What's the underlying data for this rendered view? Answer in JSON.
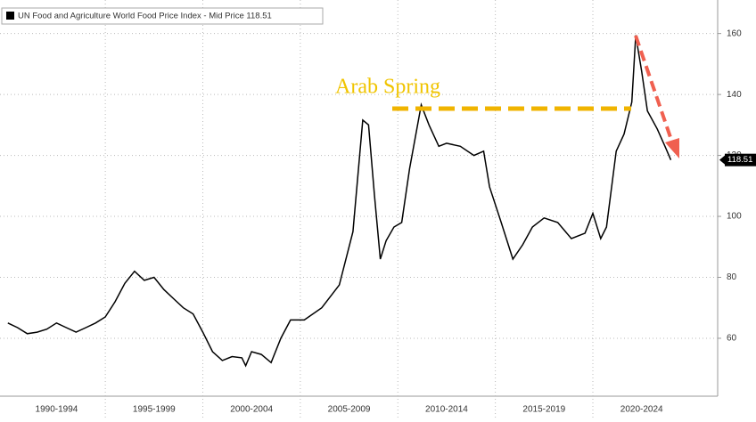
{
  "chart_data": {
    "type": "line",
    "legend": "top-left",
    "annotations": [
      "Arab Spring"
    ],
    "series": [
      {
        "name": "UN Food and Agriculture World Food Price Index - Mid Price 118.51",
        "color": "#000000",
        "x": [
          1990.0,
          1990.5,
          1991.0,
          1991.5,
          1992.0,
          1992.5,
          1993.0,
          1993.5,
          1994.0,
          1994.5,
          1995.0,
          1995.5,
          1996.0,
          1996.5,
          1997.0,
          1997.5,
          1998.0,
          1998.5,
          1999.0,
          1999.5,
          2000.0,
          2000.5,
          2001.0,
          2001.5,
          2002.0,
          2002.2,
          2002.5,
          2003.0,
          2003.5,
          2004.0,
          2004.5,
          2005.2,
          2006.1,
          2007.0,
          2007.7,
          2008.2,
          2008.5,
          2008.8,
          2009.1,
          2009.4,
          2009.8,
          2010.2,
          2010.6,
          2011.2,
          2011.6,
          2012.1,
          2012.5,
          2013.2,
          2013.9,
          2014.4,
          2014.7,
          2015.3,
          2015.9,
          2016.4,
          2016.9,
          2017.5,
          2018.2,
          2018.9,
          2019.6,
          2020.0,
          2020.4,
          2020.7,
          2021.2,
          2021.6,
          2022.0,
          2022.2,
          2022.5,
          2022.8,
          2023.3,
          2023.7,
          2024.0
        ],
        "values": [
          65,
          63.5,
          61.5,
          62,
          63,
          65,
          63.5,
          62,
          63.5,
          65,
          67,
          72,
          78,
          82,
          79,
          80,
          76,
          73,
          70,
          68,
          62,
          55.6,
          52.7,
          54,
          53.6,
          51,
          55.6,
          54.7,
          52,
          60,
          66,
          66,
          70,
          77.5,
          95,
          131.6,
          130,
          107,
          86,
          92,
          96.5,
          98,
          115.6,
          136.6,
          130,
          123,
          124,
          123,
          120,
          121.4,
          109.7,
          98,
          86,
          90.7,
          96.5,
          99.5,
          98,
          92.7,
          94.5,
          101,
          92.7,
          96.5,
          121.4,
          127,
          137.5,
          159.4,
          147.7,
          134.6,
          128.7,
          123,
          118.51
        ]
      }
    ],
    "xlim": [
      1989.6,
      2026.4
    ],
    "xticks": [
      {
        "value": 1992.5,
        "label": "1990-1994"
      },
      {
        "value": 1997.5,
        "label": "1995-1999"
      },
      {
        "value": 2002.5,
        "label": "2000-2004"
      },
      {
        "value": 2007.5,
        "label": "2005-2009"
      },
      {
        "value": 2012.5,
        "label": "2010-2014"
      },
      {
        "value": 2017.5,
        "label": "2015-2019"
      },
      {
        "value": 2022.5,
        "label": "2020-2024"
      }
    ],
    "ylim": [
      41,
      171
    ],
    "yticks": [
      60,
      80,
      100,
      120,
      140,
      160
    ],
    "grid": true
  }
}
